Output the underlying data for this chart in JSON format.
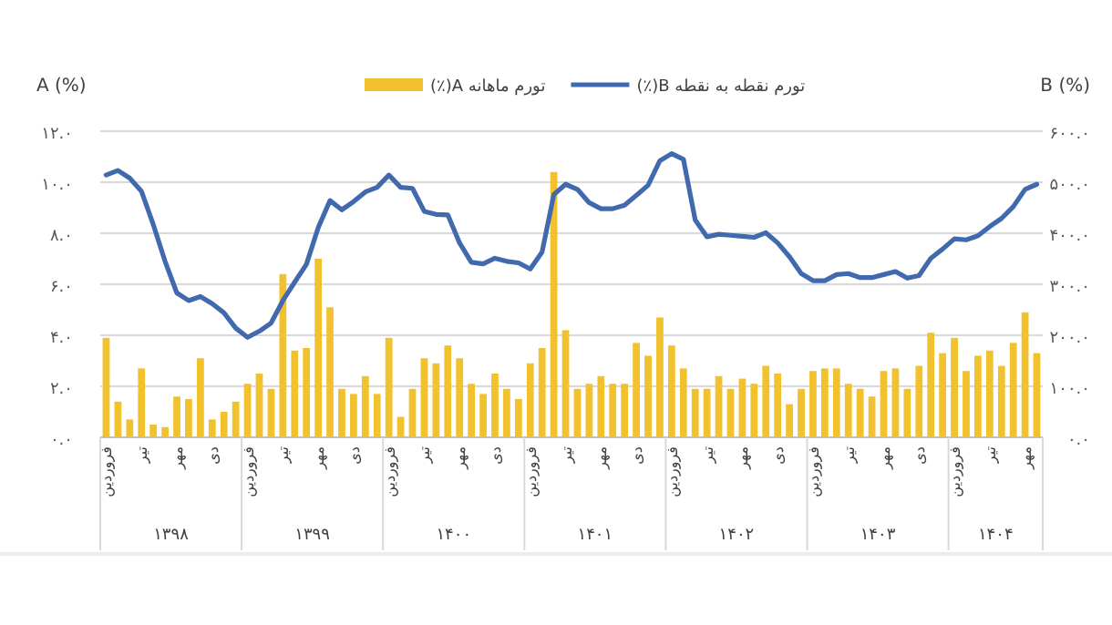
{
  "chart_data": {
    "type": "bar",
    "categories": [
      "فروردین",
      null,
      null,
      "تیر",
      null,
      null,
      "مهر",
      null,
      null,
      "دی",
      null,
      null,
      "فروردین",
      null,
      null,
      "تیر",
      null,
      null,
      "مهر",
      null,
      null,
      "دی",
      null,
      null,
      "فروردین",
      null,
      null,
      "تیر",
      null,
      null,
      "مهر",
      null,
      null,
      "دی",
      null,
      null,
      "فروردین",
      null,
      null,
      "تیر",
      null,
      null,
      "مهر",
      null,
      null,
      "دی",
      null,
      null,
      "فروردین",
      null,
      null,
      "تیر",
      null,
      null,
      "مهر",
      null,
      null,
      "دی",
      null,
      null,
      "فروردین",
      null,
      null,
      "تیر",
      null,
      null,
      "مهر",
      null,
      null,
      "دی",
      null,
      null,
      "فروردین",
      null,
      null,
      "تیر",
      null,
      null,
      "مهر",
      null
    ],
    "series": [
      {
        "name": "تورم ماهانه A(٪)",
        "color": "#f2c12e",
        "values": [
          3.9,
          1.4,
          0.7,
          2.7,
          0.5,
          0.4,
          1.6,
          1.5,
          3.1,
          0.7,
          1.0,
          1.4,
          2.1,
          2.5,
          1.9,
          6.4,
          3.4,
          3.5,
          7.0,
          5.1,
          1.9,
          1.7,
          2.4,
          1.7,
          3.9,
          0.8,
          1.9,
          3.1,
          2.9,
          3.6,
          3.1,
          2.1,
          1.7,
          2.5,
          1.9,
          1.5,
          2.9,
          3.5,
          10.4,
          4.2,
          1.9,
          2.1,
          2.4,
          2.1,
          2.1,
          3.7,
          3.2,
          4.7,
          3.6,
          2.7,
          1.9,
          1.9,
          2.4,
          1.9,
          2.3,
          2.1,
          2.8,
          2.5,
          1.3,
          1.9,
          2.6,
          2.7,
          2.7,
          2.1,
          1.9,
          1.6,
          2.6,
          2.7,
          1.9,
          2.8,
          4.1,
          3.3,
          3.9,
          2.6,
          3.2,
          3.4,
          2.8,
          3.7,
          4.9,
          3.3
        ]
      },
      {
        "name": "تورم نقطه به نقطه B(٪)",
        "type": "line",
        "axis": "y2",
        "color": "#4169ad",
        "values": [
          514,
          523,
          508,
          482,
          417,
          345,
          283,
          268,
          276,
          262,
          244,
          214,
          196,
          208,
          224,
          268,
          304,
          339,
          411,
          464,
          446,
          462,
          481,
          490,
          514,
          490,
          488,
          443,
          437,
          436,
          381,
          343,
          340,
          351,
          345,
          342,
          330,
          363,
          476,
          496,
          486,
          460,
          448,
          448,
          455,
          474,
          494,
          542,
          556,
          545,
          426,
          393,
          398,
          396,
          394,
          392,
          401,
          381,
          354,
          321,
          307,
          307,
          319,
          321,
          313,
          313,
          319,
          325,
          312,
          317,
          351,
          369,
          389,
          387,
          395,
          413,
          429,
          452,
          486,
          496
        ]
      }
    ],
    "ylabel": "A (%)",
    "y2label": "B (%)",
    "ylim": [
      0,
      12
    ],
    "yticks": [
      {
        "value": 0,
        "label": "۰.۰"
      },
      {
        "value": 2,
        "label": "۲.۰"
      },
      {
        "value": 4,
        "label": "۴.۰"
      },
      {
        "value": 6,
        "label": "۶.۰"
      },
      {
        "value": 8,
        "label": "۸.۰"
      },
      {
        "value": 10,
        "label": "۱۰.۰"
      },
      {
        "value": 12,
        "label": "۱۲.۰"
      }
    ],
    "y2lim": [
      0,
      600
    ],
    "y2ticks": [
      {
        "value": 0,
        "label": "۰.۰"
      },
      {
        "value": 100,
        "label": "۱۰۰.۰"
      },
      {
        "value": 200,
        "label": "۲۰۰.۰"
      },
      {
        "value": 300,
        "label": "۳۰۰.۰"
      },
      {
        "value": 400,
        "label": "۴۰۰.۰"
      },
      {
        "value": 500,
        "label": "۵۰۰.۰"
      },
      {
        "value": 600,
        "label": "۶۰۰.۰"
      }
    ],
    "grid": "y",
    "legend": "top",
    "annotations": [
      "۱۳۹۸",
      "۱۳۹۹",
      "۱۴۰۰",
      "۱۴۰۱",
      "۱۴۰۲",
      "۱۴۰۳",
      "۱۴۰۴"
    ]
  }
}
